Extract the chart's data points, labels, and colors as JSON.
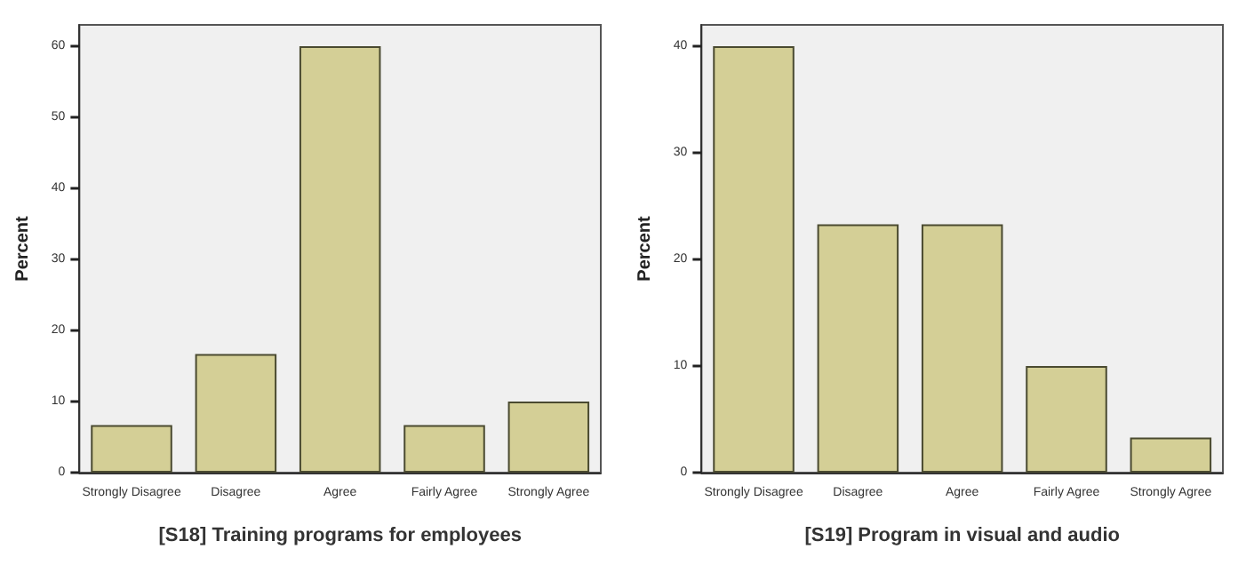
{
  "chart_data": [
    {
      "type": "bar",
      "xlabel": "[S18] Training programs for employees",
      "ylabel": "Percent",
      "categories": [
        "Strongly Disagree",
        "Disagree",
        "Agree",
        "Fairly Agree",
        "Strongly Agree"
      ],
      "values": [
        6.7,
        16.7,
        60,
        6.7,
        10
      ],
      "color": "#d4cf96",
      "ylim": [
        0,
        63
      ],
      "yticks": [
        0,
        10,
        20,
        30,
        40,
        50,
        60
      ],
      "grid": false
    },
    {
      "type": "bar",
      "xlabel": "[S19] Program in visual and audio",
      "ylabel": "Percent",
      "categories": [
        "Strongly Disagree",
        "Disagree",
        "Agree",
        "Fairly Agree",
        "Strongly Agree"
      ],
      "values": [
        40,
        23.3,
        23.3,
        10,
        3.3
      ],
      "color": "#d4cf96",
      "ylim": [
        0,
        42
      ],
      "yticks": [
        0,
        10,
        20,
        30,
        40
      ],
      "grid": false
    }
  ]
}
